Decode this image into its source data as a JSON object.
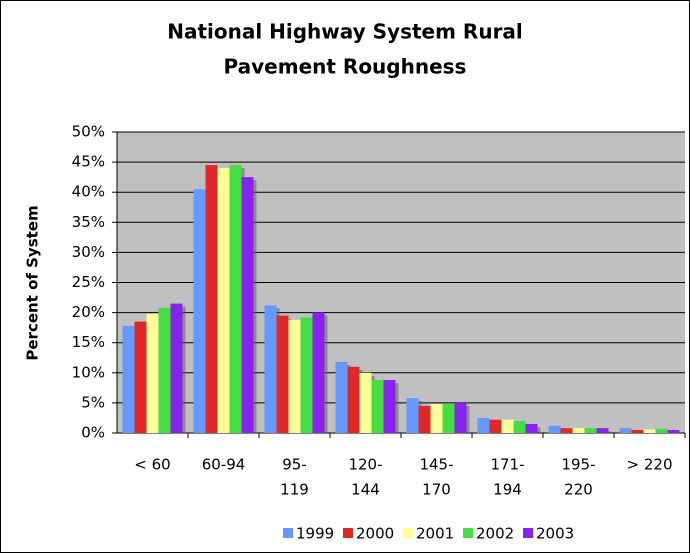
{
  "chart_data": {
    "type": "bar",
    "title": [
      "National Highway System Rural",
      "Pavement Roughness"
    ],
    "y_label": "Percent of System",
    "categories": [
      [
        "< 60"
      ],
      [
        "60-94"
      ],
      [
        "95-",
        "119"
      ],
      [
        "120-",
        "144"
      ],
      [
        "145-",
        "170"
      ],
      [
        "171-",
        "194"
      ],
      [
        "195-",
        "220"
      ],
      [
        "> 220"
      ]
    ],
    "series": [
      {
        "name": "1999",
        "color": "#6699ff",
        "values": [
          17.8,
          40.5,
          21.2,
          11.8,
          5.8,
          2.5,
          1.2,
          0.8
        ]
      },
      {
        "name": "2000",
        "color": "#e02828",
        "values": [
          18.5,
          44.5,
          19.5,
          11.0,
          4.5,
          2.2,
          0.8,
          0.5
        ]
      },
      {
        "name": "2001",
        "color": "#ffff99",
        "values": [
          19.8,
          44.0,
          18.8,
          10.0,
          4.8,
          2.2,
          0.8,
          0.6
        ]
      },
      {
        "name": "2002",
        "color": "#44dd44",
        "values": [
          20.8,
          44.5,
          19.2,
          8.8,
          4.8,
          2.0,
          0.8,
          0.7
        ]
      },
      {
        "name": "2003",
        "color": "#8822ee",
        "values": [
          21.5,
          42.5,
          20.0,
          8.8,
          5.0,
          1.5,
          0.8,
          0.5
        ]
      }
    ],
    "ylim": [
      0,
      50
    ],
    "yticks": [
      {
        "value": 0,
        "label": "0%"
      },
      {
        "value": 5,
        "label": "5%"
      },
      {
        "value": 10,
        "label": "10%"
      },
      {
        "value": 15,
        "label": "15%"
      },
      {
        "value": 20,
        "label": "20%"
      },
      {
        "value": 25,
        "label": "25%"
      },
      {
        "value": 30,
        "label": "30%"
      },
      {
        "value": 35,
        "label": "35%"
      },
      {
        "value": 40,
        "label": "40%"
      },
      {
        "value": 45,
        "label": "45%"
      },
      {
        "value": 50,
        "label": "50%"
      }
    ],
    "grid": true
  }
}
